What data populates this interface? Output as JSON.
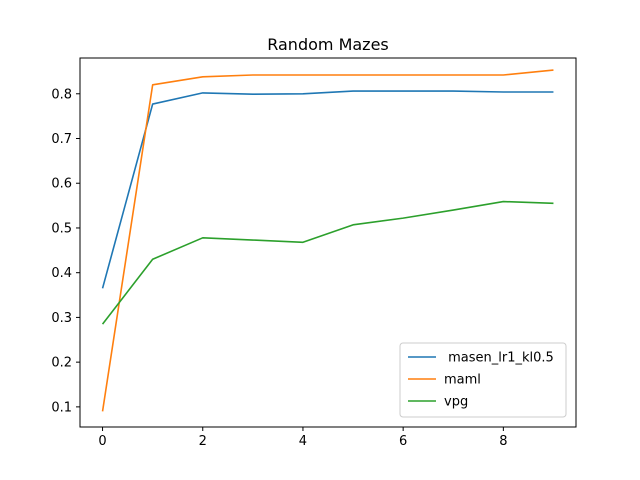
{
  "chart_data": {
    "type": "line",
    "title": "Random Mazes",
    "xlabel": "",
    "ylabel": "",
    "x": [
      0,
      1,
      2,
      3,
      4,
      5,
      6,
      7,
      8,
      9
    ],
    "xlim": [
      -0.45,
      9.45
    ],
    "ylim": [
      0.055,
      0.88
    ],
    "xticks": [
      0,
      2,
      4,
      6,
      8
    ],
    "yticks": [
      0.1,
      0.2,
      0.3,
      0.4,
      0.5,
      0.6,
      0.7,
      0.8
    ],
    "grid": false,
    "legend_position": "lower-right",
    "series": [
      {
        "name": " masen_lr1_kl0.5",
        "color": "#1f77b4",
        "values": [
          0.365,
          0.777,
          0.802,
          0.799,
          0.8,
          0.806,
          0.806,
          0.806,
          0.804,
          0.804
        ]
      },
      {
        "name": "maml",
        "color": "#ff7f0e",
        "values": [
          0.09,
          0.82,
          0.838,
          0.842,
          0.842,
          0.842,
          0.842,
          0.842,
          0.842,
          0.853
        ]
      },
      {
        "name": "vpg",
        "color": "#2ca02c",
        "values": [
          0.285,
          0.43,
          0.478,
          0.473,
          0.468,
          0.507,
          0.522,
          0.54,
          0.559,
          0.555
        ]
      }
    ]
  }
}
